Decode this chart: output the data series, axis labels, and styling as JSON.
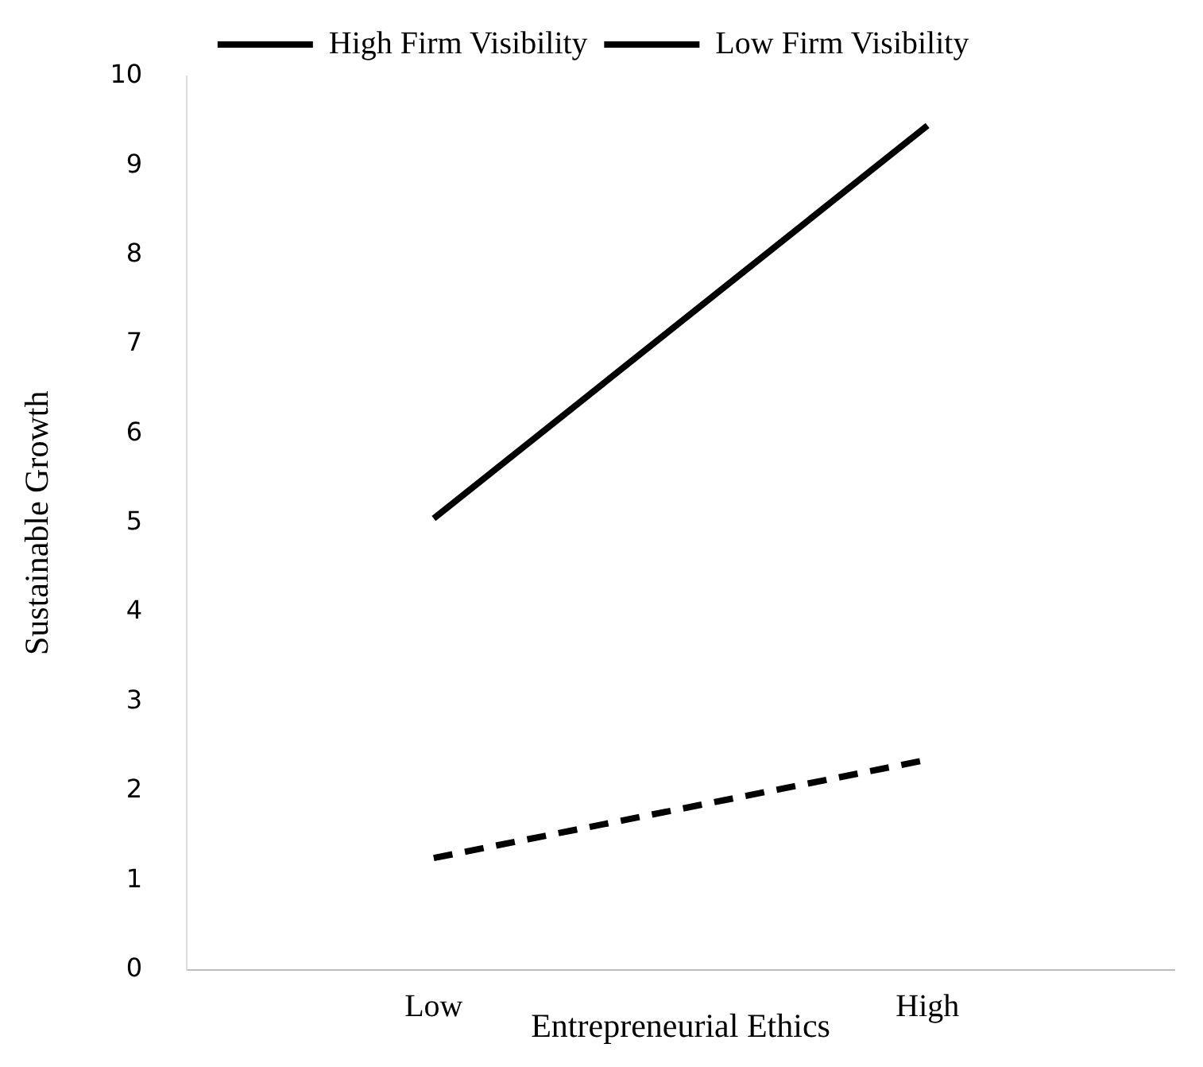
{
  "chart_data": {
    "type": "line",
    "xlabel": "Entrepreneurial Ethics",
    "ylabel": "Sustainable Growth",
    "categories": [
      "Low",
      "High"
    ],
    "series": [
      {
        "name": "High Firm Visibility",
        "color": "#000000",
        "values": [
          5.05,
          9.45
        ],
        "line_style": "solid"
      },
      {
        "name": "Low Firm Visibility",
        "color": "#000000",
        "values": [
          1.25,
          2.35
        ],
        "line_style": "dashed"
      }
    ],
    "ylim": [
      0,
      10
    ],
    "yticks": [
      0,
      1,
      2,
      3,
      4,
      5,
      6,
      7,
      8,
      9,
      10
    ],
    "grid": false,
    "legend": "top",
    "marker": "none"
  }
}
